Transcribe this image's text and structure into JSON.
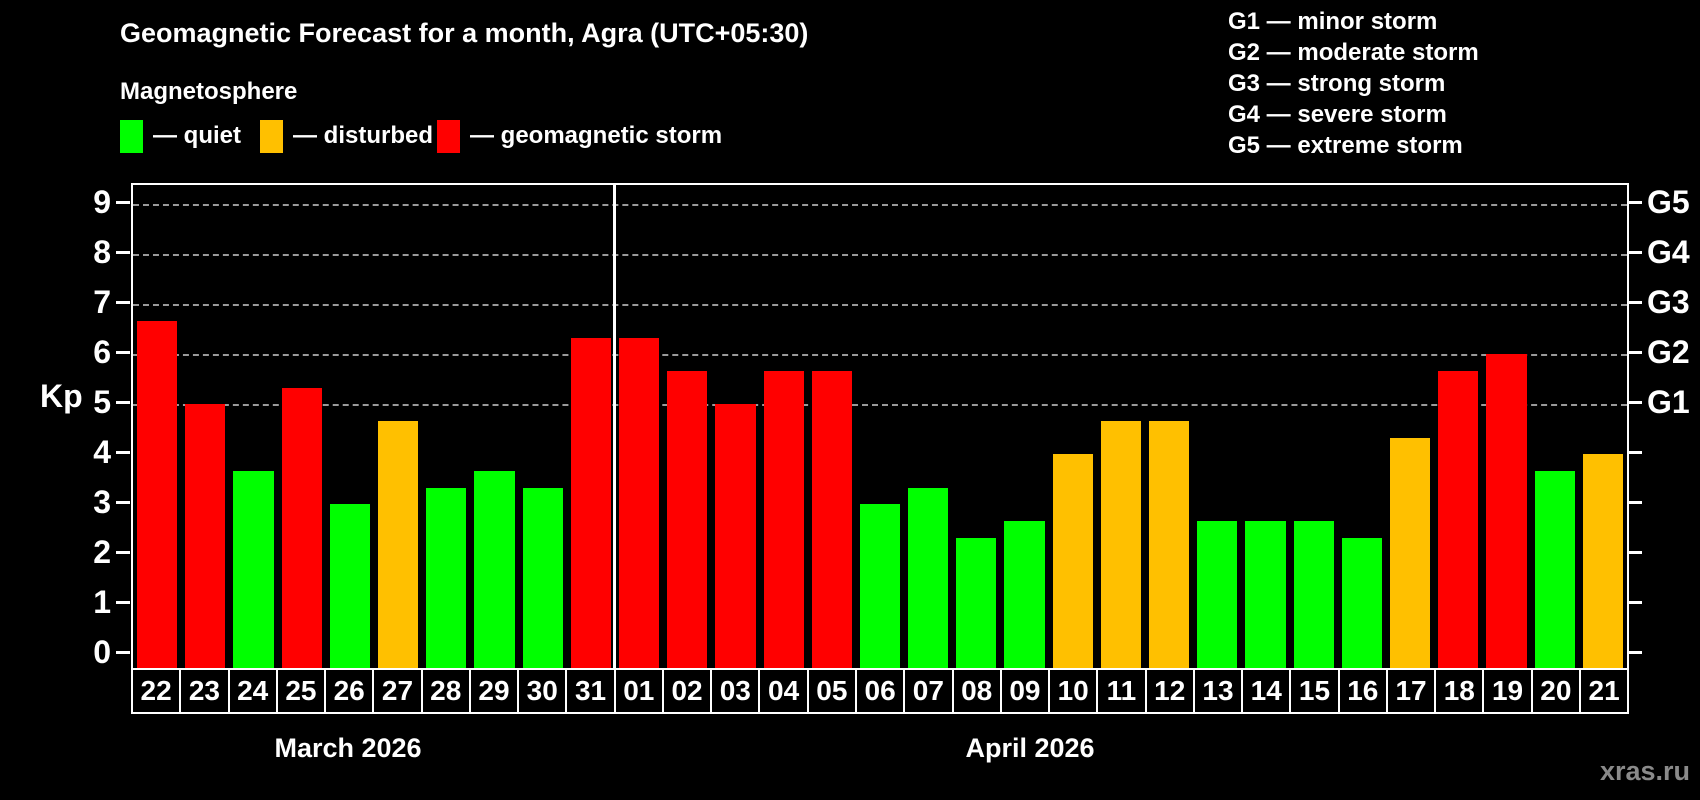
{
  "title": "Geomagnetic Forecast for a month, Agra (UTC+05:30)",
  "subtitle": "Magnetosphere",
  "legend": {
    "items": [
      {
        "label": "— quiet",
        "color": "#00ff00",
        "status": "quiet"
      },
      {
        "label": "— disturbed",
        "color": "#ffc000",
        "status": "disturbed"
      },
      {
        "label": "— geomagnetic storm",
        "color": "#ff0000",
        "status": "storm"
      }
    ]
  },
  "g_legend": [
    "G1 — minor storm",
    "G2 — moderate storm",
    "G3 — strong storm",
    "G4 — severe storm",
    "G5 — extreme storm"
  ],
  "axis": {
    "kp_label": "Kp"
  },
  "watermark": "xras.ru",
  "chart_data": {
    "type": "bar",
    "title": "Geomagnetic Forecast for a month, Agra (UTC+05:30)",
    "ylabel": "Kp",
    "ylim": [
      0,
      9
    ],
    "grid": "dashed horizontal at G-levels only",
    "grid_color": "#9a9a9a",
    "kp_ticks": [
      0,
      1,
      2,
      3,
      4,
      5,
      6,
      7,
      8,
      9
    ],
    "grid_levels": [
      5,
      6,
      7,
      8,
      9
    ],
    "right_axis_labels": [
      {
        "value": 5,
        "label": "G1"
      },
      {
        "value": 6,
        "label": "G2"
      },
      {
        "value": 7,
        "label": "G3"
      },
      {
        "value": 8,
        "label": "G4"
      },
      {
        "value": 9,
        "label": "G5"
      }
    ],
    "status_colors": {
      "quiet": "#00ff00",
      "disturbed": "#ffc000",
      "storm": "#ff0000"
    },
    "months": [
      {
        "name": "March 2026",
        "days": [
          {
            "day": "22",
            "kp": 6.67,
            "status": "storm"
          },
          {
            "day": "23",
            "kp": 5.0,
            "status": "storm"
          },
          {
            "day": "24",
            "kp": 3.67,
            "status": "quiet"
          },
          {
            "day": "25",
            "kp": 5.33,
            "status": "storm"
          },
          {
            "day": "26",
            "kp": 3.0,
            "status": "quiet"
          },
          {
            "day": "27",
            "kp": 4.67,
            "status": "disturbed"
          },
          {
            "day": "28",
            "kp": 3.33,
            "status": "quiet"
          },
          {
            "day": "29",
            "kp": 3.67,
            "status": "quiet"
          },
          {
            "day": "30",
            "kp": 3.33,
            "status": "quiet"
          },
          {
            "day": "31",
            "kp": 6.33,
            "status": "storm"
          }
        ]
      },
      {
        "name": "April 2026",
        "days": [
          {
            "day": "01",
            "kp": 6.33,
            "status": "storm"
          },
          {
            "day": "02",
            "kp": 5.67,
            "status": "storm"
          },
          {
            "day": "03",
            "kp": 5.0,
            "status": "storm"
          },
          {
            "day": "04",
            "kp": 5.67,
            "status": "storm"
          },
          {
            "day": "05",
            "kp": 5.67,
            "status": "storm"
          },
          {
            "day": "06",
            "kp": 3.0,
            "status": "quiet"
          },
          {
            "day": "07",
            "kp": 3.33,
            "status": "quiet"
          },
          {
            "day": "08",
            "kp": 2.33,
            "status": "quiet"
          },
          {
            "day": "09",
            "kp": 2.67,
            "status": "quiet"
          },
          {
            "day": "10",
            "kp": 4.0,
            "status": "disturbed"
          },
          {
            "day": "11",
            "kp": 4.67,
            "status": "disturbed"
          },
          {
            "day": "12",
            "kp": 4.67,
            "status": "disturbed"
          },
          {
            "day": "13",
            "kp": 2.67,
            "status": "quiet"
          },
          {
            "day": "14",
            "kp": 2.67,
            "status": "quiet"
          },
          {
            "day": "15",
            "kp": 2.67,
            "status": "quiet"
          },
          {
            "day": "16",
            "kp": 2.33,
            "status": "quiet"
          },
          {
            "day": "17",
            "kp": 4.33,
            "status": "disturbed"
          },
          {
            "day": "18",
            "kp": 5.67,
            "status": "storm"
          },
          {
            "day": "19",
            "kp": 6.0,
            "status": "storm"
          },
          {
            "day": "20",
            "kp": 3.67,
            "status": "quiet"
          },
          {
            "day": "21",
            "kp": 4.0,
            "status": "disturbed"
          }
        ]
      }
    ]
  }
}
